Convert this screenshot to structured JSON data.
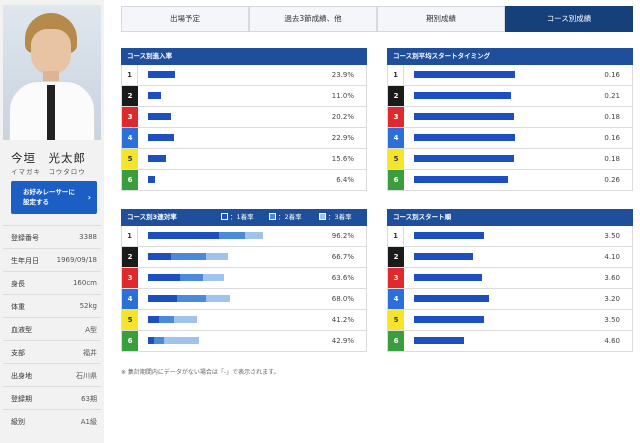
{
  "racer": {
    "name": "今垣　光太郎",
    "kana": "イマガキ　コウタロウ",
    "fav_button": [
      "お好みレーサーに",
      "設定する"
    ],
    "info": [
      {
        "label": "登録番号",
        "value": "3388"
      },
      {
        "label": "生年月日",
        "value": "1969/09/18"
      },
      {
        "label": "身長",
        "value": "160cm"
      },
      {
        "label": "体重",
        "value": "52kg"
      },
      {
        "label": "血液型",
        "value": "A型"
      },
      {
        "label": "支部",
        "value": "福井"
      },
      {
        "label": "出身地",
        "value": "石川県"
      },
      {
        "label": "登録期",
        "value": "63期"
      },
      {
        "label": "級別",
        "value": "A1級"
      }
    ]
  },
  "tabs": [
    {
      "label": "出場予定",
      "active": false
    },
    {
      "label": "過去3節成績、他",
      "active": false
    },
    {
      "label": "期別成績",
      "active": false
    },
    {
      "label": "コース別成績",
      "active": true
    }
  ],
  "colors": {
    "header": "#1f4e9a",
    "bar": "#1e4fc0",
    "bar2": "#4b8ad8",
    "bar3": "#9fc3ea"
  },
  "panels": {
    "entry_rate": {
      "title": "コース別進入率",
      "rows": [
        {
          "course": "1",
          "rate": 23.9,
          "label": "23.9%"
        },
        {
          "course": "2",
          "rate": 11.0,
          "label": "11.0%"
        },
        {
          "course": "3",
          "rate": 20.2,
          "label": "20.2%"
        },
        {
          "course": "4",
          "rate": 22.9,
          "label": "22.9%"
        },
        {
          "course": "5",
          "rate": 15.6,
          "label": "15.6%"
        },
        {
          "course": "6",
          "rate": 6.4,
          "label": "6.4%"
        }
      ]
    },
    "start_timing": {
      "title": "コース別平均スタートタイミング",
      "rows": [
        {
          "course": "1",
          "fill": 0.88,
          "label": "0.16"
        },
        {
          "course": "2",
          "fill": 0.84,
          "label": "0.21"
        },
        {
          "course": "3",
          "fill": 0.87,
          "label": "0.18"
        },
        {
          "course": "4",
          "fill": 0.88,
          "label": "0.16"
        },
        {
          "course": "5",
          "fill": 0.87,
          "label": "0.18"
        },
        {
          "course": "6",
          "fill": 0.82,
          "label": "0.26"
        }
      ]
    },
    "top3_rate": {
      "title": "コース別3連対率",
      "legend": [
        "：1着率",
        "：2着率",
        "：3着率"
      ],
      "rows": [
        {
          "course": "1",
          "first": 59.0,
          "second": 22.0,
          "third": 15.2,
          "label": "96.2%"
        },
        {
          "course": "2",
          "first": 19.0,
          "second": 29.0,
          "third": 18.7,
          "label": "66.7%"
        },
        {
          "course": "3",
          "first": 27.0,
          "second": 19.0,
          "third": 17.6,
          "label": "63.6%"
        },
        {
          "course": "4",
          "first": 24.0,
          "second": 24.0,
          "third": 20.0,
          "label": "68.0%"
        },
        {
          "course": "5",
          "first": 9.0,
          "second": 13.0,
          "third": 19.2,
          "label": "41.2%"
        },
        {
          "course": "6",
          "first": 5.0,
          "second": 8.0,
          "third": 29.9,
          "label": "42.9%"
        }
      ]
    },
    "start_rank": {
      "title": "コース別スタート順",
      "rows": [
        {
          "course": "1",
          "value": 3.5,
          "label": "3.50"
        },
        {
          "course": "2",
          "value": 4.1,
          "label": "4.10"
        },
        {
          "course": "3",
          "value": 3.6,
          "label": "3.60"
        },
        {
          "course": "4",
          "value": 3.2,
          "label": "3.20"
        },
        {
          "course": "5",
          "value": 3.5,
          "label": "3.50"
        },
        {
          "course": "6",
          "value": 4.6,
          "label": "4.60"
        }
      ]
    }
  },
  "note": "※ 集計期間内にデータがない場合は「-」で表示されます。"
}
